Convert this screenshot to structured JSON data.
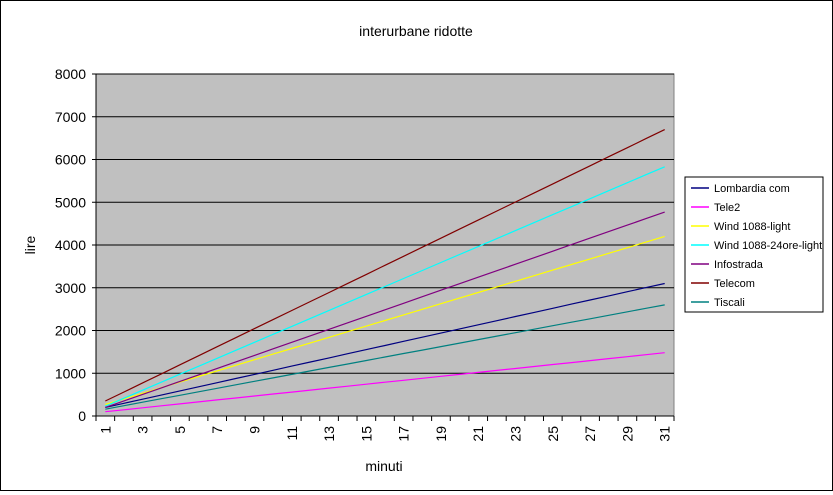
{
  "chart_data": {
    "type": "line",
    "title": "interurbane ridotte",
    "xlabel": "minuti",
    "ylabel": "lire",
    "x": [
      1,
      2,
      3,
      4,
      5,
      6,
      7,
      8,
      9,
      10,
      11,
      12,
      13,
      14,
      15,
      16,
      17,
      18,
      19,
      20,
      21,
      22,
      23,
      24,
      25,
      26,
      27,
      28,
      29,
      30,
      31
    ],
    "x_tick_labels": [
      "1",
      "3",
      "5",
      "7",
      "9",
      "11",
      "13",
      "15",
      "17",
      "19",
      "21",
      "23",
      "25",
      "27",
      "29",
      "31"
    ],
    "ylim": [
      0,
      8000
    ],
    "y_tick_labels": [
      "0",
      "1000",
      "2000",
      "3000",
      "4000",
      "5000",
      "6000",
      "7000",
      "8000"
    ],
    "grid": "horizontal",
    "legend_position": "right",
    "plot_background": "#c0c0c0",
    "series": [
      {
        "name": "Lombardia com",
        "color": "#000080",
        "start": 200,
        "end": 3100
      },
      {
        "name": "Tele2",
        "color": "#ff00ff",
        "start": 100,
        "end": 1480
      },
      {
        "name": "Wind 1088-light",
        "color": "#ffff00",
        "start": 270,
        "end": 4200
      },
      {
        "name": "Wind 1088-24ore-light",
        "color": "#00ffff",
        "start": 230,
        "end": 5830
      },
      {
        "name": "Infostrada",
        "color": "#800080",
        "start": 200,
        "end": 4770
      },
      {
        "name": "Telecom",
        "color": "#800000",
        "start": 350,
        "end": 6700
      },
      {
        "name": "Tiscali",
        "color": "#008080",
        "start": 160,
        "end": 2600
      }
    ]
  }
}
